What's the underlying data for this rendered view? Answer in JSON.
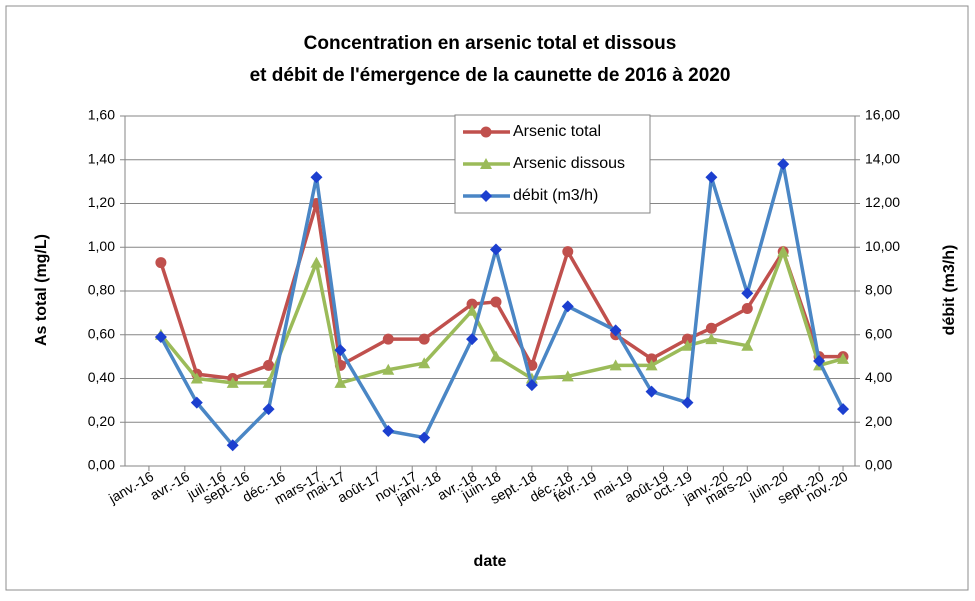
{
  "chart_data": {
    "type": "line",
    "title": [
      "Concentration en arsenic total et dissous",
      "et débit de l'émergence de la caunette de 2016 à 2020"
    ],
    "x_label": "date",
    "y_label": "As total (mg/L)",
    "y2_label": "débit (m3/h)",
    "x": [
      "2016-02",
      "2016-05",
      "2016-08",
      "2016-11",
      "2017-03",
      "2017-05",
      "2017-09",
      "2017-12",
      "2018-04",
      "2018-06",
      "2018-09",
      "2018-12",
      "2019-04",
      "2019-07",
      "2019-10",
      "2019-12",
      "2020-03",
      "2020-06",
      "2020-09",
      "2020-11"
    ],
    "xlim": [
      "2015-11",
      "2020-12"
    ],
    "xticks": [
      {
        "value": "2016-01",
        "label": "janv.-16"
      },
      {
        "value": "2016-04",
        "label": "avr.-16"
      },
      {
        "value": "2016-07",
        "label": "juil.-16"
      },
      {
        "value": "2016-09",
        "label": "sept.-16"
      },
      {
        "value": "2016-12",
        "label": "déc.-16"
      },
      {
        "value": "2017-03",
        "label": "mars-17"
      },
      {
        "value": "2017-05",
        "label": "mai-17"
      },
      {
        "value": "2017-08",
        "label": "août-17"
      },
      {
        "value": "2017-11",
        "label": "nov.-17"
      },
      {
        "value": "2018-01",
        "label": "janv.-18"
      },
      {
        "value": "2018-04",
        "label": "avr.-18"
      },
      {
        "value": "2018-06",
        "label": "juin-18"
      },
      {
        "value": "2018-09",
        "label": "sept.-18"
      },
      {
        "value": "2018-12",
        "label": "déc.-18"
      },
      {
        "value": "2019-02",
        "label": "févr.-19"
      },
      {
        "value": "2019-05",
        "label": "mai-19"
      },
      {
        "value": "2019-08",
        "label": "août-19"
      },
      {
        "value": "2019-10",
        "label": "oct.-19"
      },
      {
        "value": "2020-01",
        "label": "janv.-20"
      },
      {
        "value": "2020-03",
        "label": "mars-20"
      },
      {
        "value": "2020-06",
        "label": "juin-20"
      },
      {
        "value": "2020-09",
        "label": "sept.-20"
      },
      {
        "value": "2020-11",
        "label": "nov.-20"
      }
    ],
    "ylim": [
      0,
      1.6
    ],
    "yticks": [
      {
        "value": 0,
        "label": "0,00"
      },
      {
        "value": 0.2,
        "label": "0,20"
      },
      {
        "value": 0.4,
        "label": "0,40"
      },
      {
        "value": 0.6,
        "label": "0,60"
      },
      {
        "value": 0.8,
        "label": "0,80"
      },
      {
        "value": 1.0,
        "label": "1,00"
      },
      {
        "value": 1.2,
        "label": "1,20"
      },
      {
        "value": 1.4,
        "label": "1,40"
      },
      {
        "value": 1.6,
        "label": "1,60"
      }
    ],
    "y2lim": [
      0,
      16
    ],
    "y2ticks": [
      {
        "value": 0,
        "label": "0,00"
      },
      {
        "value": 2,
        "label": "2,00"
      },
      {
        "value": 4,
        "label": "4,00"
      },
      {
        "value": 6,
        "label": "6,00"
      },
      {
        "value": 8,
        "label": "8,00"
      },
      {
        "value": 10,
        "label": "10,00"
      },
      {
        "value": 12,
        "label": "12,00"
      },
      {
        "value": 14,
        "label": "14,00"
      },
      {
        "value": 16,
        "label": "16,00"
      }
    ],
    "grid": true,
    "legend": "top",
    "series": [
      {
        "name": "Arsenic total",
        "color": "#c0504d",
        "marker": "circle",
        "values": [
          0.93,
          0.42,
          0.4,
          0.46,
          1.2,
          0.46,
          0.58,
          0.58,
          0.74,
          0.75,
          0.46,
          0.98,
          0.6,
          0.49,
          0.58,
          0.63,
          0.72,
          0.98,
          0.5,
          0.5
        ]
      },
      {
        "name": "Arsenic dissous",
        "color": "#9bbb59",
        "marker": "triangle",
        "values": [
          0.6,
          0.4,
          0.38,
          0.38,
          0.93,
          0.38,
          0.44,
          0.47,
          0.71,
          0.5,
          0.4,
          0.41,
          0.46,
          0.46,
          0.55,
          0.58,
          0.55,
          0.98,
          0.46,
          0.49
        ]
      },
      {
        "name": "débit (m3/h)",
        "color": "#4a86c5",
        "marker": "diamond",
        "axis": "y2",
        "values": [
          5.9,
          2.9,
          0.95,
          2.6,
          13.2,
          5.3,
          1.6,
          1.3,
          5.8,
          9.9,
          3.7,
          7.3,
          6.2,
          3.4,
          2.9,
          13.2,
          7.9,
          13.8,
          4.8,
          2.6
        ]
      }
    ]
  }
}
